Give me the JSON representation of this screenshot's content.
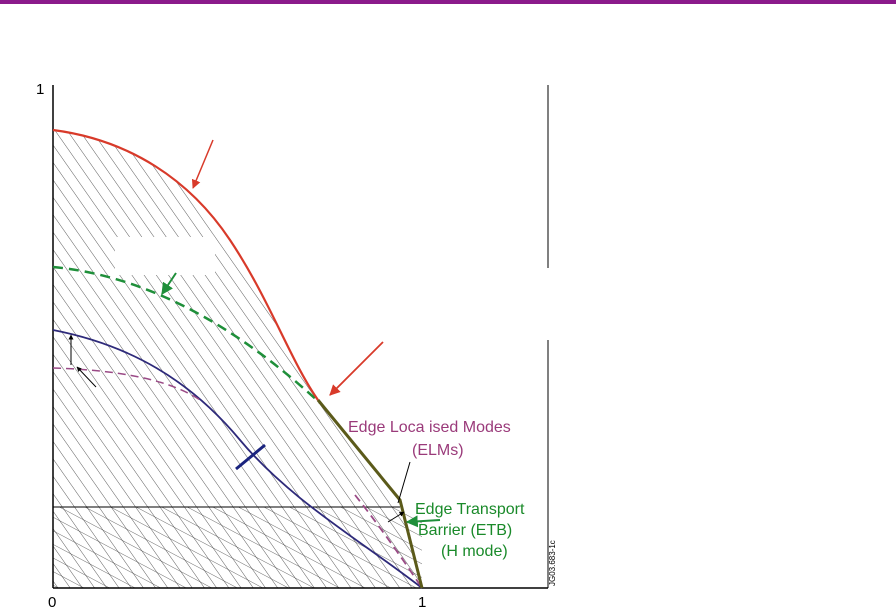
{
  "diagram": {
    "axis": {
      "y_top_label": "1",
      "x_origin_label": "0",
      "x_end_label": "1"
    },
    "labels": {
      "elm_line1": "Edge Loca ised Modes",
      "elm_line2": "(ELMs)",
      "etb_line1": "Edge Transport",
      "etb_line2": "Barrier (ETB)",
      "etb_line3": "(H mode)",
      "ref_code": "JG03.683-1c"
    },
    "colors": {
      "frame": "#8b1a8b",
      "red_curve": "#d83a2a",
      "green_curve": "#1f8f3a",
      "navy_curve": "#2e2a7a",
      "purple_dashed": "#9a4a86",
      "olive_edge": "#5b5a1a",
      "elm_text": "#9a3a7a",
      "etb_text": "#1a8a2a",
      "hatch": "#333333"
    }
  }
}
